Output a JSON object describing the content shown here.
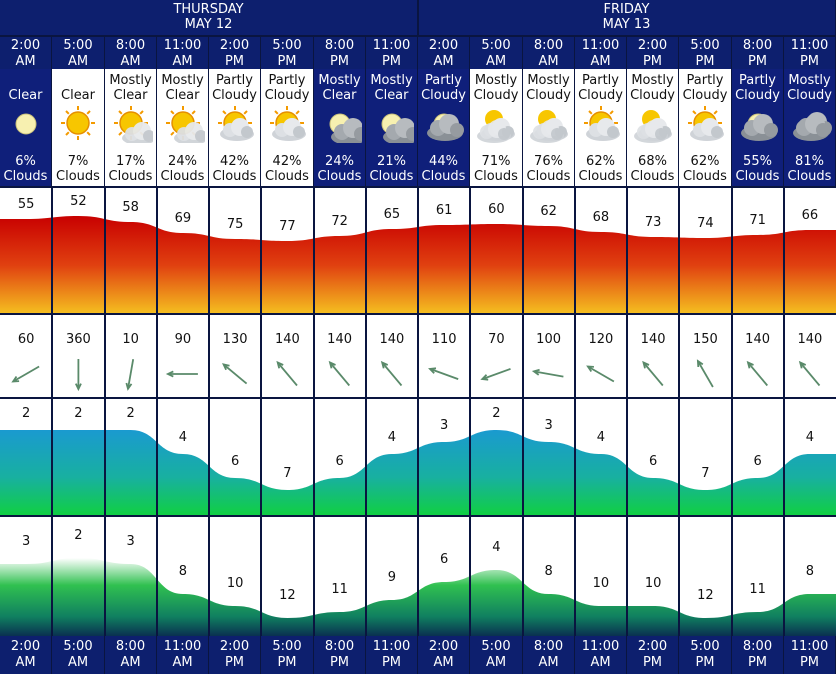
{
  "days": [
    {
      "name": "THURSDAY",
      "date": "MAY 12"
    },
    {
      "name": "FRIDAY",
      "date": "MAY 13"
    }
  ],
  "colors": {
    "header": "#0d1f6e",
    "night": "#0f1f7a",
    "grid": "#0a1540",
    "temp_top": "#c80000",
    "temp_bottom": "#f5c020",
    "wave_top": "#1a9ad0",
    "wave_bottom": "#10d040",
    "period_green": "#10c040",
    "arrow": "#5a8a6a"
  },
  "columns": [
    {
      "time": "2:00",
      "ampm": "AM",
      "cond1": "",
      "cond2": "Clear",
      "clouds": "6%",
      "clouds_label": "Clouds",
      "icon": "moon-icon",
      "night": true
    },
    {
      "time": "5:00",
      "ampm": "AM",
      "cond1": "",
      "cond2": "Clear",
      "clouds": "7%",
      "clouds_label": "Clouds",
      "icon": "sun-icon",
      "night": false
    },
    {
      "time": "8:00",
      "ampm": "AM",
      "cond1": "Mostly",
      "cond2": "Clear",
      "clouds": "17%",
      "clouds_label": "Clouds",
      "icon": "sun-cloud-icon",
      "night": false
    },
    {
      "time": "11:00",
      "ampm": "AM",
      "cond1": "Mostly",
      "cond2": "Clear",
      "clouds": "24%",
      "clouds_label": "Clouds",
      "icon": "sun-cloud-icon",
      "night": false
    },
    {
      "time": "2:00",
      "ampm": "PM",
      "cond1": "Partly",
      "cond2": "Cloudy",
      "clouds": "42%",
      "clouds_label": "Clouds",
      "icon": "partly-cloudy-sun-icon",
      "night": false
    },
    {
      "time": "5:00",
      "ampm": "PM",
      "cond1": "Partly",
      "cond2": "Cloudy",
      "clouds": "42%",
      "clouds_label": "Clouds",
      "icon": "partly-cloudy-sun-icon",
      "night": false
    },
    {
      "time": "8:00",
      "ampm": "PM",
      "cond1": "Mostly",
      "cond2": "Clear",
      "clouds": "24%",
      "clouds_label": "Clouds",
      "icon": "moon-cloud-icon",
      "night": true
    },
    {
      "time": "11:00",
      "ampm": "PM",
      "cond1": "Mostly",
      "cond2": "Clear",
      "clouds": "21%",
      "clouds_label": "Clouds",
      "icon": "moon-cloud-icon",
      "night": true
    },
    {
      "time": "2:00",
      "ampm": "AM",
      "cond1": "Partly",
      "cond2": "Cloudy",
      "clouds": "44%",
      "clouds_label": "Clouds",
      "icon": "partly-cloudy-moon-icon",
      "night": true
    },
    {
      "time": "5:00",
      "ampm": "AM",
      "cond1": "Mostly",
      "cond2": "Cloudy",
      "clouds": "71%",
      "clouds_label": "Clouds",
      "icon": "mostly-cloudy-icon",
      "night": false
    },
    {
      "time": "8:00",
      "ampm": "AM",
      "cond1": "Mostly",
      "cond2": "Cloudy",
      "clouds": "76%",
      "clouds_label": "Clouds",
      "icon": "mostly-cloudy-icon",
      "night": false
    },
    {
      "time": "11:00",
      "ampm": "AM",
      "cond1": "Partly",
      "cond2": "Cloudy",
      "clouds": "62%",
      "clouds_label": "Clouds",
      "icon": "partly-cloudy-sun-icon",
      "night": false
    },
    {
      "time": "2:00",
      "ampm": "PM",
      "cond1": "Mostly",
      "cond2": "Cloudy",
      "clouds": "68%",
      "clouds_label": "Clouds",
      "icon": "mostly-cloudy-icon",
      "night": false
    },
    {
      "time": "5:00",
      "ampm": "PM",
      "cond1": "Partly",
      "cond2": "Cloudy",
      "clouds": "62%",
      "clouds_label": "Clouds",
      "icon": "partly-cloudy-sun-icon",
      "night": false
    },
    {
      "time": "8:00",
      "ampm": "PM",
      "cond1": "Partly",
      "cond2": "Cloudy",
      "clouds": "55%",
      "clouds_label": "Clouds",
      "icon": "partly-cloudy-moon-icon",
      "night": true
    },
    {
      "time": "11:00",
      "ampm": "PM",
      "cond1": "Mostly",
      "cond2": "Cloudy",
      "clouds": "81%",
      "clouds_label": "Clouds",
      "icon": "mostly-cloudy-night-icon",
      "night": true
    }
  ],
  "chart_data": [
    {
      "type": "area",
      "categories": [
        "2:00 AM",
        "5:00 AM",
        "8:00 AM",
        "11:00 AM",
        "2:00 PM",
        "5:00 PM",
        "8:00 PM",
        "11:00 PM",
        "2:00 AM",
        "5:00 AM",
        "8:00 AM",
        "11:00 AM",
        "2:00 PM",
        "5:00 PM",
        "8:00 PM",
        "11:00 PM"
      ],
      "values": [
        55,
        52,
        58,
        69,
        75,
        77,
        72,
        65,
        61,
        60,
        62,
        68,
        73,
        74,
        71,
        66
      ],
      "ylim": [
        0,
        100
      ]
    },
    {
      "type": "scatter",
      "categories": [
        "2:00 AM",
        "5:00 AM",
        "8:00 AM",
        "11:00 AM",
        "2:00 PM",
        "5:00 PM",
        "8:00 PM",
        "11:00 PM",
        "2:00 AM",
        "5:00 AM",
        "8:00 AM",
        "11:00 AM",
        "2:00 PM",
        "5:00 PM",
        "8:00 PM",
        "11:00 PM"
      ],
      "values": [
        60,
        360,
        10,
        90,
        130,
        140,
        140,
        140,
        110,
        70,
        100,
        120,
        140,
        150,
        140,
        140
      ]
    },
    {
      "type": "area",
      "categories": [
        "2:00 AM",
        "5:00 AM",
        "8:00 AM",
        "11:00 AM",
        "2:00 PM",
        "5:00 PM",
        "8:00 PM",
        "11:00 PM",
        "2:00 AM",
        "5:00 AM",
        "8:00 AM",
        "11:00 AM",
        "2:00 PM",
        "5:00 PM",
        "8:00 PM",
        "11:00 PM"
      ],
      "values": [
        2,
        2,
        2,
        4,
        6,
        7,
        6,
        4,
        3,
        2,
        3,
        4,
        6,
        7,
        6,
        4
      ],
      "ylim": [
        0,
        10
      ]
    },
    {
      "type": "area",
      "categories": [
        "2:00 AM",
        "5:00 AM",
        "8:00 AM",
        "11:00 AM",
        "2:00 PM",
        "5:00 PM",
        "8:00 PM",
        "11:00 PM",
        "2:00 AM",
        "5:00 AM",
        "8:00 AM",
        "11:00 AM",
        "2:00 PM",
        "5:00 PM",
        "8:00 PM",
        "11:00 PM"
      ],
      "values": [
        3,
        2,
        3,
        8,
        10,
        12,
        11,
        9,
        6,
        4,
        8,
        10,
        10,
        12,
        11,
        8
      ],
      "ylim": [
        0,
        16
      ]
    }
  ]
}
